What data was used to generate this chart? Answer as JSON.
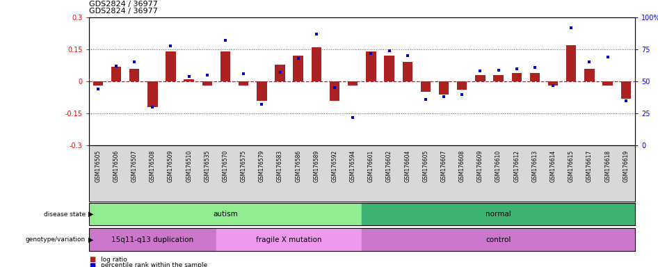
{
  "title": "GDS2824 / 36977",
  "samples": [
    "GSM176505",
    "GSM176506",
    "GSM176507",
    "GSM176508",
    "GSM176509",
    "GSM176510",
    "GSM176535",
    "GSM176570",
    "GSM176575",
    "GSM176579",
    "GSM176583",
    "GSM176586",
    "GSM176589",
    "GSM176592",
    "GSM176594",
    "GSM176601",
    "GSM176602",
    "GSM176604",
    "GSM176605",
    "GSM176607",
    "GSM176608",
    "GSM176609",
    "GSM176610",
    "GSM176612",
    "GSM176613",
    "GSM176614",
    "GSM176615",
    "GSM176617",
    "GSM176618",
    "GSM176619"
  ],
  "log_ratio": [
    -0.02,
    0.07,
    0.06,
    -0.12,
    0.14,
    0.01,
    -0.02,
    0.14,
    -0.02,
    -0.09,
    0.08,
    0.12,
    0.16,
    -0.09,
    -0.02,
    0.14,
    0.12,
    0.09,
    -0.05,
    -0.06,
    -0.04,
    0.03,
    0.03,
    0.04,
    0.04,
    -0.02,
    0.17,
    0.06,
    -0.02,
    -0.08
  ],
  "percentile": [
    44,
    62,
    65,
    30,
    78,
    54,
    55,
    82,
    56,
    32,
    57,
    68,
    87,
    45,
    22,
    72,
    74,
    70,
    36,
    38,
    40,
    58,
    59,
    60,
    61,
    47,
    92,
    65,
    69,
    35
  ],
  "disease_state_groups": [
    {
      "label": "autism",
      "start": 0,
      "end": 14,
      "color": "#90EE90"
    },
    {
      "label": "normal",
      "start": 15,
      "end": 29,
      "color": "#3CB371"
    }
  ],
  "genotype_groups": [
    {
      "label": "15q11-q13 duplication",
      "start": 0,
      "end": 6,
      "color": "#CC77CC"
    },
    {
      "label": "fragile X mutation",
      "start": 7,
      "end": 14,
      "color": "#EE99EE"
    },
    {
      "label": "control",
      "start": 15,
      "end": 29,
      "color": "#CC77CC"
    }
  ],
  "bar_color": "#AA2222",
  "dot_color": "#0000CC",
  "zero_line_color": "#FF0000",
  "dotted_line_color": "#555555",
  "ylim_left": [
    -0.3,
    0.3
  ],
  "ylim_right": [
    0,
    100
  ],
  "yticks_left": [
    -0.3,
    -0.15,
    0.0,
    0.15,
    0.3
  ],
  "ytick_labels_left": [
    "-0.3",
    "-0.15",
    "0",
    "0.15",
    "0.3"
  ],
  "yticks_right": [
    0,
    25,
    50,
    75,
    100
  ],
  "ytick_labels_right": [
    "0",
    "25",
    "50",
    "75",
    "100%"
  ]
}
